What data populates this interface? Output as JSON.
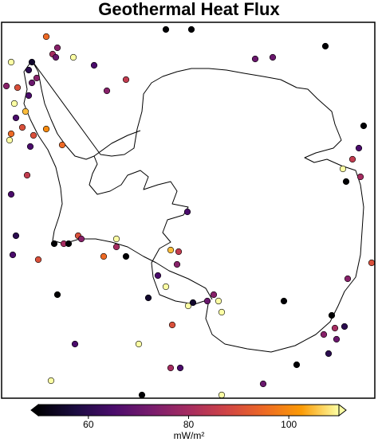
{
  "chart_data": {
    "type": "scatter",
    "title": "Geothermal Heat Flux",
    "xlim": [
      -2340,
      2340
    ],
    "ylim": [
      -2360,
      2360
    ],
    "colormap": "inferno",
    "x": [
      -1780,
      -1640,
      -280,
      40,
      -1700,
      -1660,
      -1960,
      -2220,
      -1440,
      -1180,
      -1900,
      -2000,
      -1960,
      -2280,
      -2140,
      -1020,
      -780,
      840,
      1060,
      1720,
      -2180,
      -2040,
      -2160,
      -2080,
      -2220,
      -2240,
      -1940,
      -1980,
      -1780,
      -1580,
      2200,
      2140,
      2060,
      1940,
      1980,
      2160,
      -2020,
      -2220,
      -10,
      -900,
      -900,
      -2160,
      -2200,
      -1880,
      -1060,
      -780,
      -220,
      -120,
      -140,
      -380,
      -1560,
      -1380,
      -1340,
      -1680,
      -1500,
      -1640,
      -500,
      -280,
      0,
      60,
      320,
      380,
      420,
      1200,
      2000,
      2300,
      1800,
      1700,
      1840,
      1960,
      1860,
      1760,
      -200,
      -1420,
      -620,
      -220,
      -100,
      1360,
      -1720,
      -580,
      420,
      940,
      240,
      -2000
    ],
    "y": [
      2180,
      2040,
      2270,
      2270,
      1960,
      1920,
      1860,
      1860,
      1920,
      1820,
      1660,
      1760,
      1600,
      1560,
      1540,
      1500,
      1640,
      1900,
      1920,
      2060,
      1340,
      1240,
      1160,
      1040,
      960,
      880,
      940,
      800,
      1020,
      820,
      1060,
      780,
      640,
      520,
      360,
      420,
      440,
      200,
      -20,
      -360,
      -460,
      -320,
      -560,
      -620,
      -580,
      -580,
      -500,
      -520,
      -680,
      -820,
      -420,
      -320,
      -360,
      -420,
      -420,
      -1060,
      -1100,
      -960,
      -1200,
      -1160,
      -1060,
      -1140,
      -1280,
      -1140,
      -860,
      -660,
      -1320,
      -1560,
      -1480,
      -1460,
      -1620,
      -1800,
      -1440,
      -1680,
      -1680,
      -1980,
      -1980,
      -1940,
      -2140,
      -2320,
      -2320,
      -2180,
      -1140,
      1440
    ],
    "values": [
      95,
      75,
      50,
      50,
      80,
      70,
      55,
      110,
      110,
      65,
      75,
      60,
      70,
      75,
      90,
      75,
      85,
      70,
      70,
      50,
      110,
      105,
      65,
      90,
      95,
      110,
      90,
      65,
      100,
      95,
      50,
      65,
      85,
      110,
      50,
      80,
      85,
      65,
      65,
      110,
      80,
      60,
      65,
      90,
      95,
      50,
      105,
      85,
      75,
      65,
      80,
      90,
      75,
      50,
      50,
      50,
      55,
      110,
      110,
      55,
      75,
      110,
      110,
      50,
      75,
      90,
      50,
      75,
      80,
      60,
      70,
      60,
      90,
      65,
      110,
      80,
      65,
      50,
      110,
      50,
      110,
      70,
      70,
      65
    ],
    "colorbar": {
      "label": "mW/m²",
      "clim": [
        50,
        110
      ],
      "ticks": [
        60,
        80,
        100
      ],
      "extend": "both"
    }
  }
}
